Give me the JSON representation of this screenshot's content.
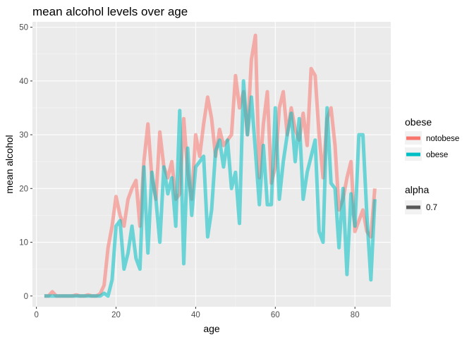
{
  "chart_data": {
    "type": "line",
    "title": "mean alcohol levels over age",
    "xlabel": "age",
    "ylabel": "mean alcohol",
    "xlim": [
      -1,
      89
    ],
    "ylim": [
      -2,
      51
    ],
    "xticks": [
      0,
      20,
      40,
      60,
      80
    ],
    "yticks": [
      0,
      10,
      20,
      30,
      40,
      50
    ],
    "grid": true,
    "legend_position": "right",
    "colors": {
      "panel_bg": "#ebebeb",
      "grid": "#ffffff",
      "notobese": "#f8766d",
      "obese": "#00bfc4"
    },
    "legends": [
      {
        "title": "obese",
        "entries": [
          {
            "label": "notobese",
            "color": "#f8766d"
          },
          {
            "label": "obese",
            "color": "#00bfc4"
          }
        ]
      },
      {
        "title": "alpha",
        "entries": [
          {
            "label": "0.7",
            "color": "#595959"
          }
        ]
      }
    ],
    "series": [
      {
        "name": "notobese",
        "color": "#f8766d",
        "x": [
          2,
          3,
          4,
          5,
          6,
          7,
          8,
          9,
          10,
          11,
          12,
          13,
          14,
          15,
          16,
          17,
          18,
          19,
          20,
          21,
          22,
          23,
          24,
          25,
          26,
          27,
          28,
          29,
          30,
          31,
          32,
          33,
          34,
          35,
          36,
          37,
          38,
          39,
          40,
          41,
          42,
          43,
          44,
          45,
          46,
          47,
          48,
          49,
          50,
          51,
          52,
          53,
          54,
          55,
          56,
          57,
          58,
          59,
          60,
          61,
          62,
          63,
          64,
          65,
          66,
          67,
          68,
          69,
          70,
          71,
          72,
          73,
          74,
          75,
          76,
          77,
          78,
          79,
          80,
          81,
          82,
          83,
          84,
          85
        ],
        "y": [
          0,
          0,
          0.8,
          0,
          0,
          0,
          0,
          0,
          0.2,
          0,
          0,
          0.2,
          0,
          0,
          0.4,
          2,
          9,
          13,
          18.5,
          15,
          13,
          18,
          20,
          21.5,
          13,
          25,
          32,
          22,
          18,
          30.5,
          24,
          22,
          25,
          18,
          19,
          33,
          23,
          18,
          30,
          26,
          32,
          37,
          33,
          26,
          31,
          28,
          29,
          30,
          41,
          35,
          38,
          30,
          44,
          48.5,
          22,
          32,
          38,
          21,
          24,
          35,
          38,
          30,
          35,
          31,
          29,
          34,
          28,
          42.3,
          41,
          30,
          22,
          33,
          35,
          28,
          16,
          18,
          22,
          25,
          12,
          14,
          16,
          12,
          11,
          20
        ]
      },
      {
        "name": "obese",
        "color": "#00bfc4",
        "x": [
          2,
          3,
          4,
          5,
          6,
          7,
          8,
          9,
          10,
          11,
          12,
          13,
          14,
          15,
          16,
          17,
          18,
          19,
          20,
          21,
          22,
          23,
          24,
          25,
          26,
          27,
          28,
          29,
          30,
          31,
          32,
          33,
          34,
          35,
          36,
          37,
          38,
          39,
          40,
          41,
          42,
          43,
          44,
          45,
          46,
          47,
          48,
          49,
          50,
          51,
          52,
          53,
          54,
          55,
          56,
          57,
          58,
          59,
          60,
          61,
          62,
          63,
          64,
          65,
          66,
          67,
          68,
          69,
          70,
          71,
          72,
          73,
          74,
          75,
          76,
          77,
          78,
          79,
          80,
          81,
          82,
          83,
          84,
          85
        ],
        "y": [
          0,
          0,
          0,
          0,
          0,
          0,
          0,
          0,
          0,
          0,
          0,
          0,
          0,
          0,
          0,
          0.5,
          0,
          3,
          13,
          14,
          5,
          8,
          13,
          7,
          5,
          24,
          8,
          23,
          18,
          10,
          24,
          19,
          22,
          13,
          34.5,
          6,
          27.5,
          15,
          24,
          25,
          26,
          11,
          16,
          27,
          29,
          24,
          29,
          20,
          23,
          13.5,
          40,
          30,
          37,
          27,
          17,
          28,
          17,
          17,
          35,
          18,
          25,
          30,
          34,
          25,
          33,
          18,
          23,
          26,
          29,
          12,
          10,
          35,
          21,
          20,
          9,
          20,
          4,
          19,
          13,
          30,
          30,
          15,
          3,
          18
        ]
      }
    ]
  }
}
